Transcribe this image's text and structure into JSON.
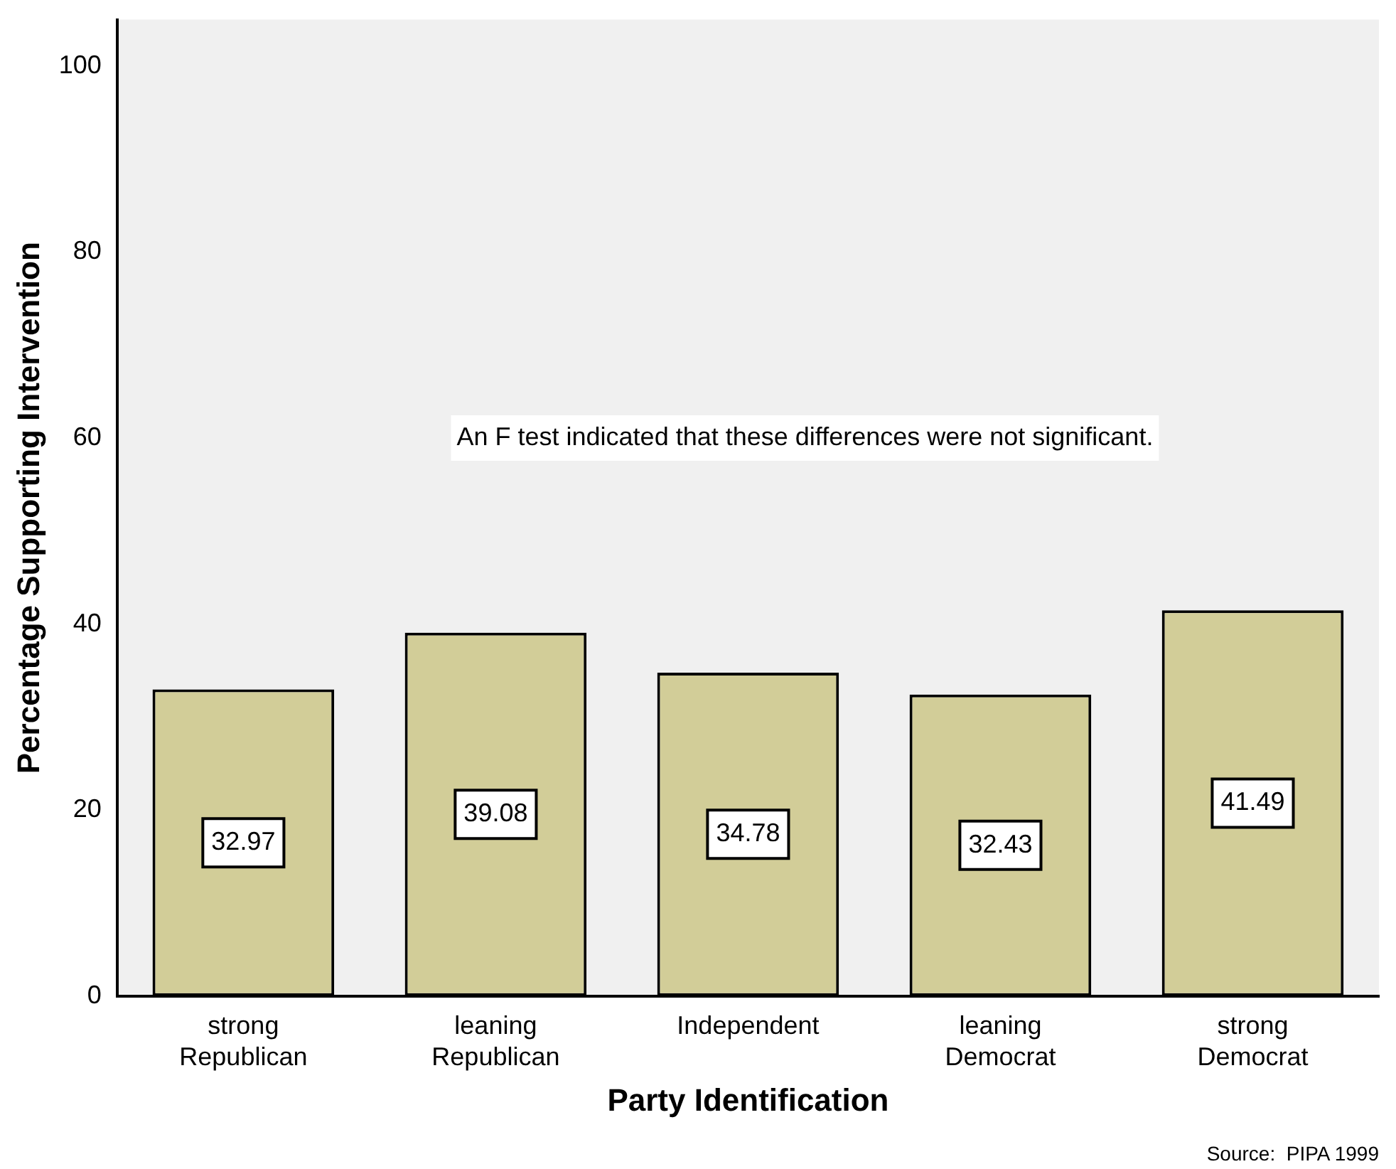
{
  "chart_data": {
    "type": "bar",
    "xlabel": "Party Identification",
    "ylabel": "Percentage Supporting Intervention",
    "categories": [
      "strong\nRepublican",
      "leaning\nRepublican",
      "Independent",
      "leaning\nDemocrat",
      "strong\nDemocrat"
    ],
    "values": [
      32.97,
      39.08,
      34.78,
      32.43,
      41.49
    ],
    "color": "#d2cd98",
    "data_labels": true,
    "ylim": [
      0,
      105
    ],
    "yticks": [
      0,
      20,
      40,
      60,
      80,
      100
    ],
    "grid": false,
    "legend": false,
    "annotations": [
      "An F test indicated that these differences were not significant.",
      "Source:  PIPA 1999"
    ]
  }
}
